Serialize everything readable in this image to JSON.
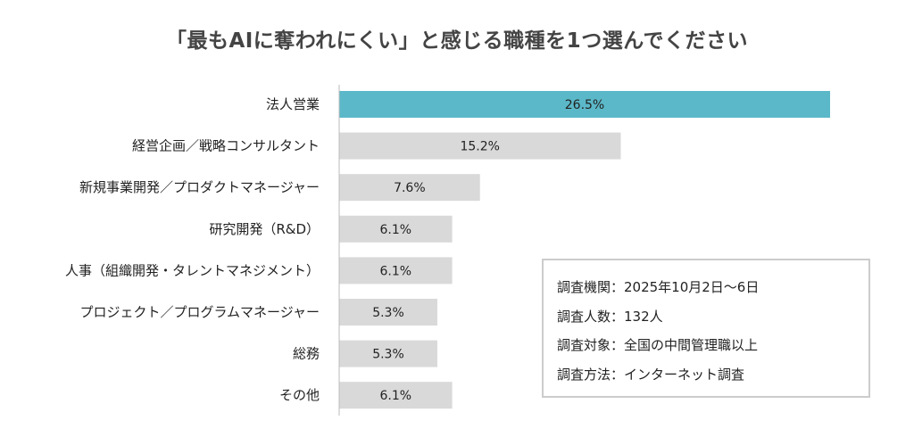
{
  "chart_data": {
    "type": "bar",
    "orientation": "horizontal",
    "title": "「最もAIに奪われにくい」と感じる職種を1つ選んでください",
    "categories": [
      "法人営業",
      "経営企画／戦略コンサルタント",
      "新規事業開発／プロダクトマネージャー",
      "研究開発（R&D）",
      "人事（組織開発・タレントマネジメント）",
      "プロジェクト／プログラムマネージャー",
      "総務",
      "その他"
    ],
    "values": [
      26.5,
      15.2,
      7.6,
      6.1,
      6.1,
      5.3,
      5.3,
      6.1
    ],
    "labels": [
      "26.5%",
      "15.2%",
      "7.6%",
      "6.1%",
      "6.1%",
      "5.3%",
      "5.3%",
      "6.1%"
    ],
    "highlight_color": "#5bb8c8",
    "bar_color": "#d9d9d9",
    "xlabel": "",
    "ylabel": "",
    "grid": false
  },
  "info": [
    "調査機関：2025年10月2日〜6日",
    "調査人数：132人",
    "調査対象：全国の中間管理職以上",
    "調査方法：インターネット調査"
  ]
}
